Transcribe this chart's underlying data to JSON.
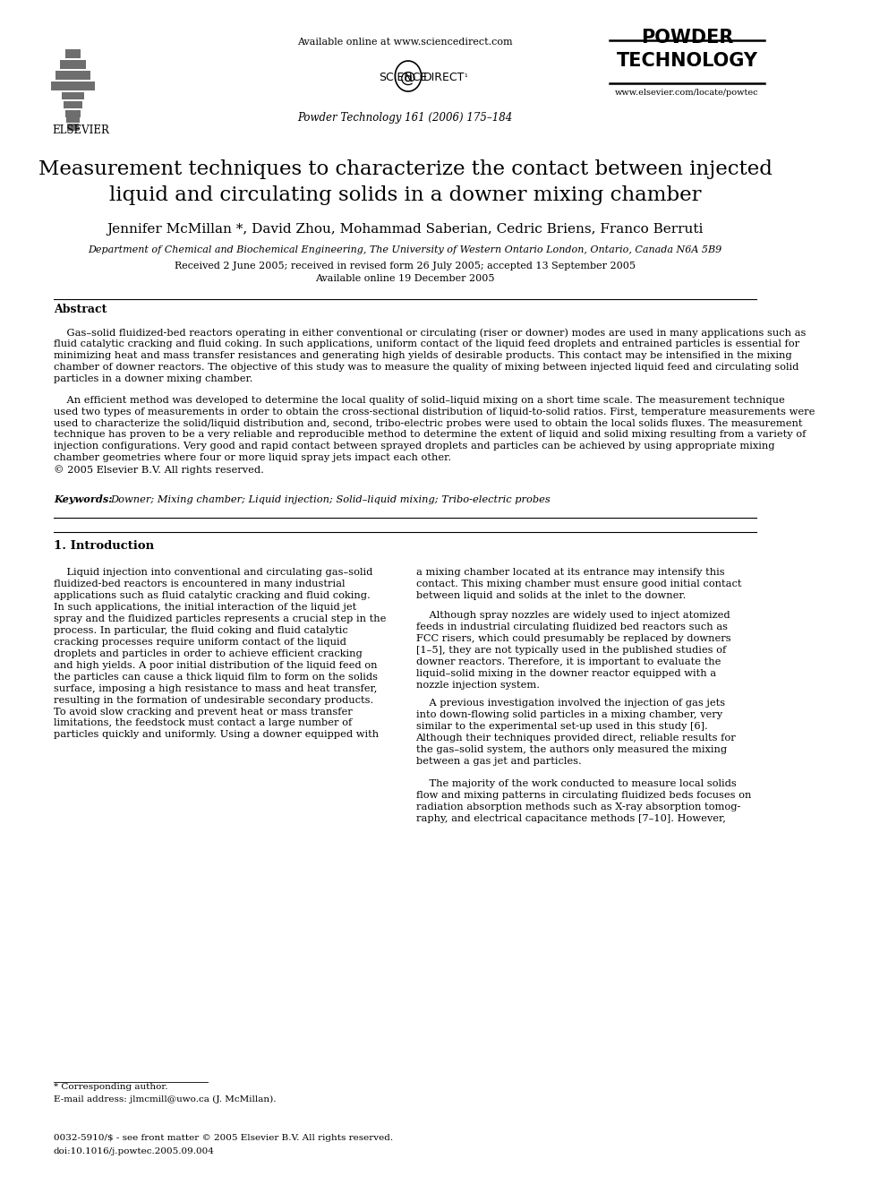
{
  "bg_color": "#ffffff",
  "header": {
    "available_online": "Available online at www.sciencedirect.com",
    "journal_name": "Powder Technology 161 (2006) 175–184",
    "powder_technology_line1": "POWDER",
    "powder_technology_line2": "TECHNOLOGY",
    "elsevier_text": "ELSEVIER",
    "website": "www.elsevier.com/locate/powtec"
  },
  "title": "Measurement techniques to characterize the contact between injected\nliquid and circulating solids in a downer mixing chamber",
  "authors": "Jennifer McMillan *, David Zhou, Mohammad Saberian, Cedric Briens, Franco Berruti",
  "affiliation": "Department of Chemical and Biochemical Engineering, The University of Western Ontario London, Ontario, Canada N6A 5B9",
  "dates": "Received 2 June 2005; received in revised form 26 July 2005; accepted 13 September 2005",
  "available_online_date": "Available online 19 December 2005",
  "abstract_title": "Abstract",
  "keywords_label": "Keywords:",
  "keywords": "Downer; Mixing chamber; Liquid injection; Solid–liquid mixing; Tribo-electric probes",
  "section1_title": "1. Introduction",
  "footnote_star": "* Corresponding author.",
  "footnote_email": "E-mail address: jlmcmill@uwo.ca (J. McMillan).",
  "footer_issn": "0032-5910/$ - see front matter © 2005 Elsevier B.V. All rights reserved.",
  "footer_doi": "doi:10.1016/j.powtec.2005.09.004",
  "abstract_para1": "    Gas–solid fluidized-bed reactors operating in either conventional or circulating (riser or downer) modes are used in many applications such as\nfluid catalytic cracking and fluid coking. In such applications, uniform contact of the liquid feed droplets and entrained particles is essential for\nminimizing heat and mass transfer resistances and generating high yields of desirable products. This contact may be intensified in the mixing\nchamber of downer reactors. The objective of this study was to measure the quality of mixing between injected liquid feed and circulating solid\nparticles in a downer mixing chamber.",
  "abstract_para2": "    An efficient method was developed to determine the local quality of solid–liquid mixing on a short time scale. The measurement technique\nused two types of measurements in order to obtain the cross-sectional distribution of liquid-to-solid ratios. First, temperature measurements were\nused to characterize the solid/liquid distribution and, second, tribo-electric probes were used to obtain the local solids fluxes. The measurement\ntechnique has proven to be a very reliable and reproducible method to determine the extent of liquid and solid mixing resulting from a variety of\ninjection configurations. Very good and rapid contact between sprayed droplets and particles can be achieved by using appropriate mixing\nchamber geometries where four or more liquid spray jets impact each other.\n© 2005 Elsevier B.V. All rights reserved.",
  "intro_col1": "    Liquid injection into conventional and circulating gas–solid\nfluidized-bed reactors is encountered in many industrial\napplications such as fluid catalytic cracking and fluid coking.\nIn such applications, the initial interaction of the liquid jet\nspray and the fluidized particles represents a crucial step in the\nprocess. In particular, the fluid coking and fluid catalytic\ncracking processes require uniform contact of the liquid\ndroplets and particles in order to achieve efficient cracking\nand high yields. A poor initial distribution of the liquid feed on\nthe particles can cause a thick liquid film to form on the solids\nsurface, imposing a high resistance to mass and heat transfer,\nresulting in the formation of undesirable secondary products.\nTo avoid slow cracking and prevent heat or mass transfer\nlimitations, the feedstock must contact a large number of\nparticles quickly and uniformly. Using a downer equipped with",
  "intro_col2_p1": "a mixing chamber located at its entrance may intensify this\ncontact. This mixing chamber must ensure good initial contact\nbetween liquid and solids at the inlet to the downer.",
  "intro_col2_p2": "    Although spray nozzles are widely used to inject atomized\nfeeds in industrial circulating fluidized bed reactors such as\nFCC risers, which could presumably be replaced by downers\n[1–5], they are not typically used in the published studies of\ndowner reactors. Therefore, it is important to evaluate the\nliquid–solid mixing in the downer reactor equipped with a\nnozzle injection system.",
  "intro_col2_p3": "    A previous investigation involved the injection of gas jets\ninto down-flowing solid particles in a mixing chamber, very\nsimilar to the experimental set-up used in this study [6].\nAlthough their techniques provided direct, reliable results for\nthe gas–solid system, the authors only measured the mixing\nbetween a gas jet and particles.",
  "intro_col2_p4": "    The majority of the work conducted to measure local solids\nflow and mixing patterns in circulating fluidized beds focuses on\nradiation absorption methods such as X-ray absorption tomog-\nraphy, and electrical capacitance methods [7–10]. However,"
}
